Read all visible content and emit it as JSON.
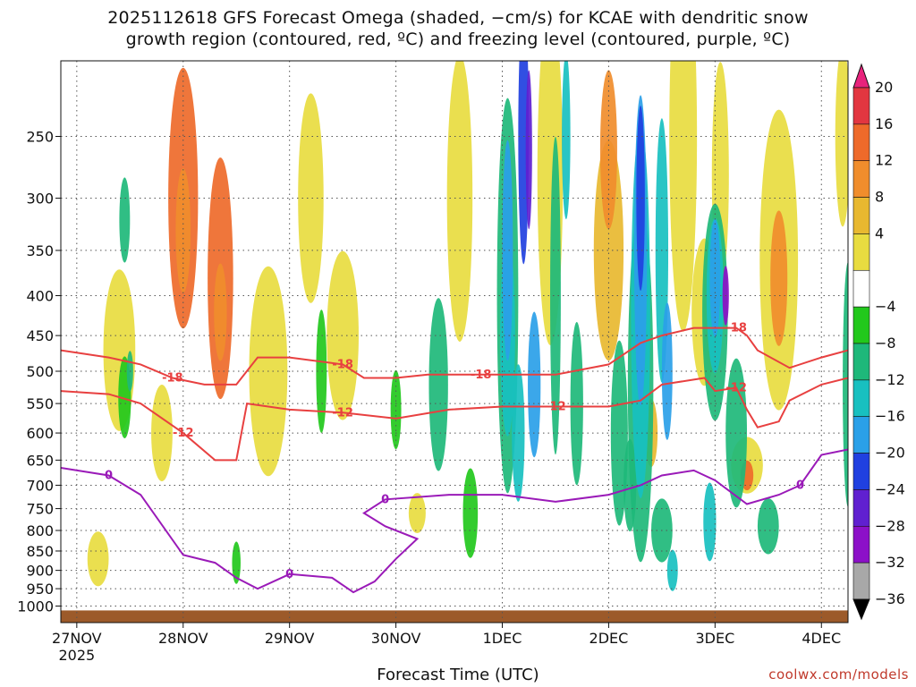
{
  "chart_data": {
    "type": "heatmap",
    "title_lines": [
      "2025112618 GFS Forecast Omega (shaded, −cm/s) for KCAE with dendritic snow",
      "growth region (contoured, red, ºC) and freezing level (contoured, purple, ºC)"
    ],
    "xlabel": "Forecast Time (UTC)",
    "credit": "coolwx.com/models",
    "y_ticks": [
      "250",
      "300",
      "350",
      "400",
      "450",
      "500",
      "550",
      "600",
      "650",
      "700",
      "750",
      "800",
      "850",
      "900",
      "950",
      "1000"
    ],
    "y_tick_values": [
      250,
      300,
      350,
      400,
      450,
      500,
      550,
      600,
      650,
      700,
      750,
      800,
      850,
      900,
      950,
      1000
    ],
    "y_range": [
      200,
      1050
    ],
    "x_ticks": [
      "27NOV",
      "28NOV",
      "29NOV",
      "30NOV",
      "1DEC",
      "2DEC",
      "3DEC",
      "4DEC"
    ],
    "x_tick_values": [
      0,
      1,
      2,
      3,
      4,
      5,
      6,
      7
    ],
    "x_year_label": "2025",
    "x_range": [
      -0.15,
      7.25
    ],
    "colorbar_labels": [
      "20",
      "16",
      "12",
      "8",
      "4",
      "−4",
      "−8",
      "−12",
      "−16",
      "−20",
      "−24",
      "−28",
      "−32",
      "−36"
    ],
    "colorbar_colors": [
      "#e8237c",
      "#e23640",
      "#ee6a2a",
      "#f08d2c",
      "#e8b830",
      "#e8dc40",
      "#ffffff",
      "#22c81c",
      "#1eb87a",
      "#18c0c0",
      "#2aa0e8",
      "#2040e0",
      "#6020d0",
      "#8c10c8",
      "#a8a8a8",
      "#000000"
    ],
    "contours": [
      {
        "label": "-18",
        "color": "#e84040",
        "series": [
          [
            -0.15,
            470
          ],
          [
            0.3,
            480
          ],
          [
            0.6,
            490
          ],
          [
            0.9,
            510
          ],
          [
            1.2,
            520
          ],
          [
            1.5,
            520
          ],
          [
            1.7,
            480
          ],
          [
            2.0,
            480
          ],
          [
            2.5,
            490
          ],
          [
            2.7,
            510
          ],
          [
            3.0,
            510
          ],
          [
            3.3,
            505
          ],
          [
            3.8,
            505
          ],
          [
            4.5,
            505
          ],
          [
            5.0,
            490
          ],
          [
            5.3,
            460
          ],
          [
            5.5,
            450
          ],
          [
            5.8,
            440
          ],
          [
            6.2,
            440
          ],
          [
            6.3,
            450
          ],
          [
            6.4,
            470
          ],
          [
            6.7,
            495
          ],
          [
            7.0,
            480
          ],
          [
            7.25,
            470
          ]
        ]
      },
      {
        "label": "-12",
        "color": "#e84040",
        "series": [
          [
            -0.15,
            530
          ],
          [
            0.3,
            535
          ],
          [
            0.6,
            550
          ],
          [
            1.0,
            600
          ],
          [
            1.3,
            650
          ],
          [
            1.5,
            650
          ],
          [
            1.6,
            550
          ],
          [
            2.0,
            560
          ],
          [
            2.5,
            565
          ],
          [
            3.0,
            575
          ],
          [
            3.5,
            560
          ],
          [
            4.0,
            555
          ],
          [
            4.5,
            555
          ],
          [
            5.0,
            555
          ],
          [
            5.3,
            545
          ],
          [
            5.5,
            520
          ],
          [
            5.9,
            510
          ],
          [
            6.0,
            530
          ],
          [
            6.2,
            525
          ],
          [
            6.3,
            560
          ],
          [
            6.4,
            590
          ],
          [
            6.6,
            580
          ],
          [
            6.7,
            545
          ],
          [
            7.0,
            520
          ],
          [
            7.25,
            510
          ]
        ]
      },
      {
        "label": "0",
        "color": "#9a1ab8",
        "series": [
          [
            -0.15,
            665
          ],
          [
            0.3,
            680
          ],
          [
            0.6,
            720
          ],
          [
            1.0,
            860
          ],
          [
            1.3,
            880
          ],
          [
            1.5,
            920
          ],
          [
            1.7,
            950
          ],
          [
            2.0,
            910
          ],
          [
            2.4,
            920
          ],
          [
            2.6,
            960
          ],
          [
            2.8,
            930
          ],
          [
            3.0,
            870
          ],
          [
            3.2,
            820
          ],
          [
            2.9,
            790
          ],
          [
            2.7,
            760
          ],
          [
            2.9,
            730
          ],
          [
            3.5,
            720
          ],
          [
            4.0,
            720
          ],
          [
            4.5,
            735
          ],
          [
            5.0,
            720
          ],
          [
            5.3,
            700
          ],
          [
            5.5,
            680
          ],
          [
            5.8,
            670
          ],
          [
            6.0,
            690
          ],
          [
            6.3,
            740
          ],
          [
            6.6,
            720
          ],
          [
            6.8,
            700
          ],
          [
            7.0,
            640
          ],
          [
            7.25,
            630
          ]
        ]
      }
    ]
  }
}
